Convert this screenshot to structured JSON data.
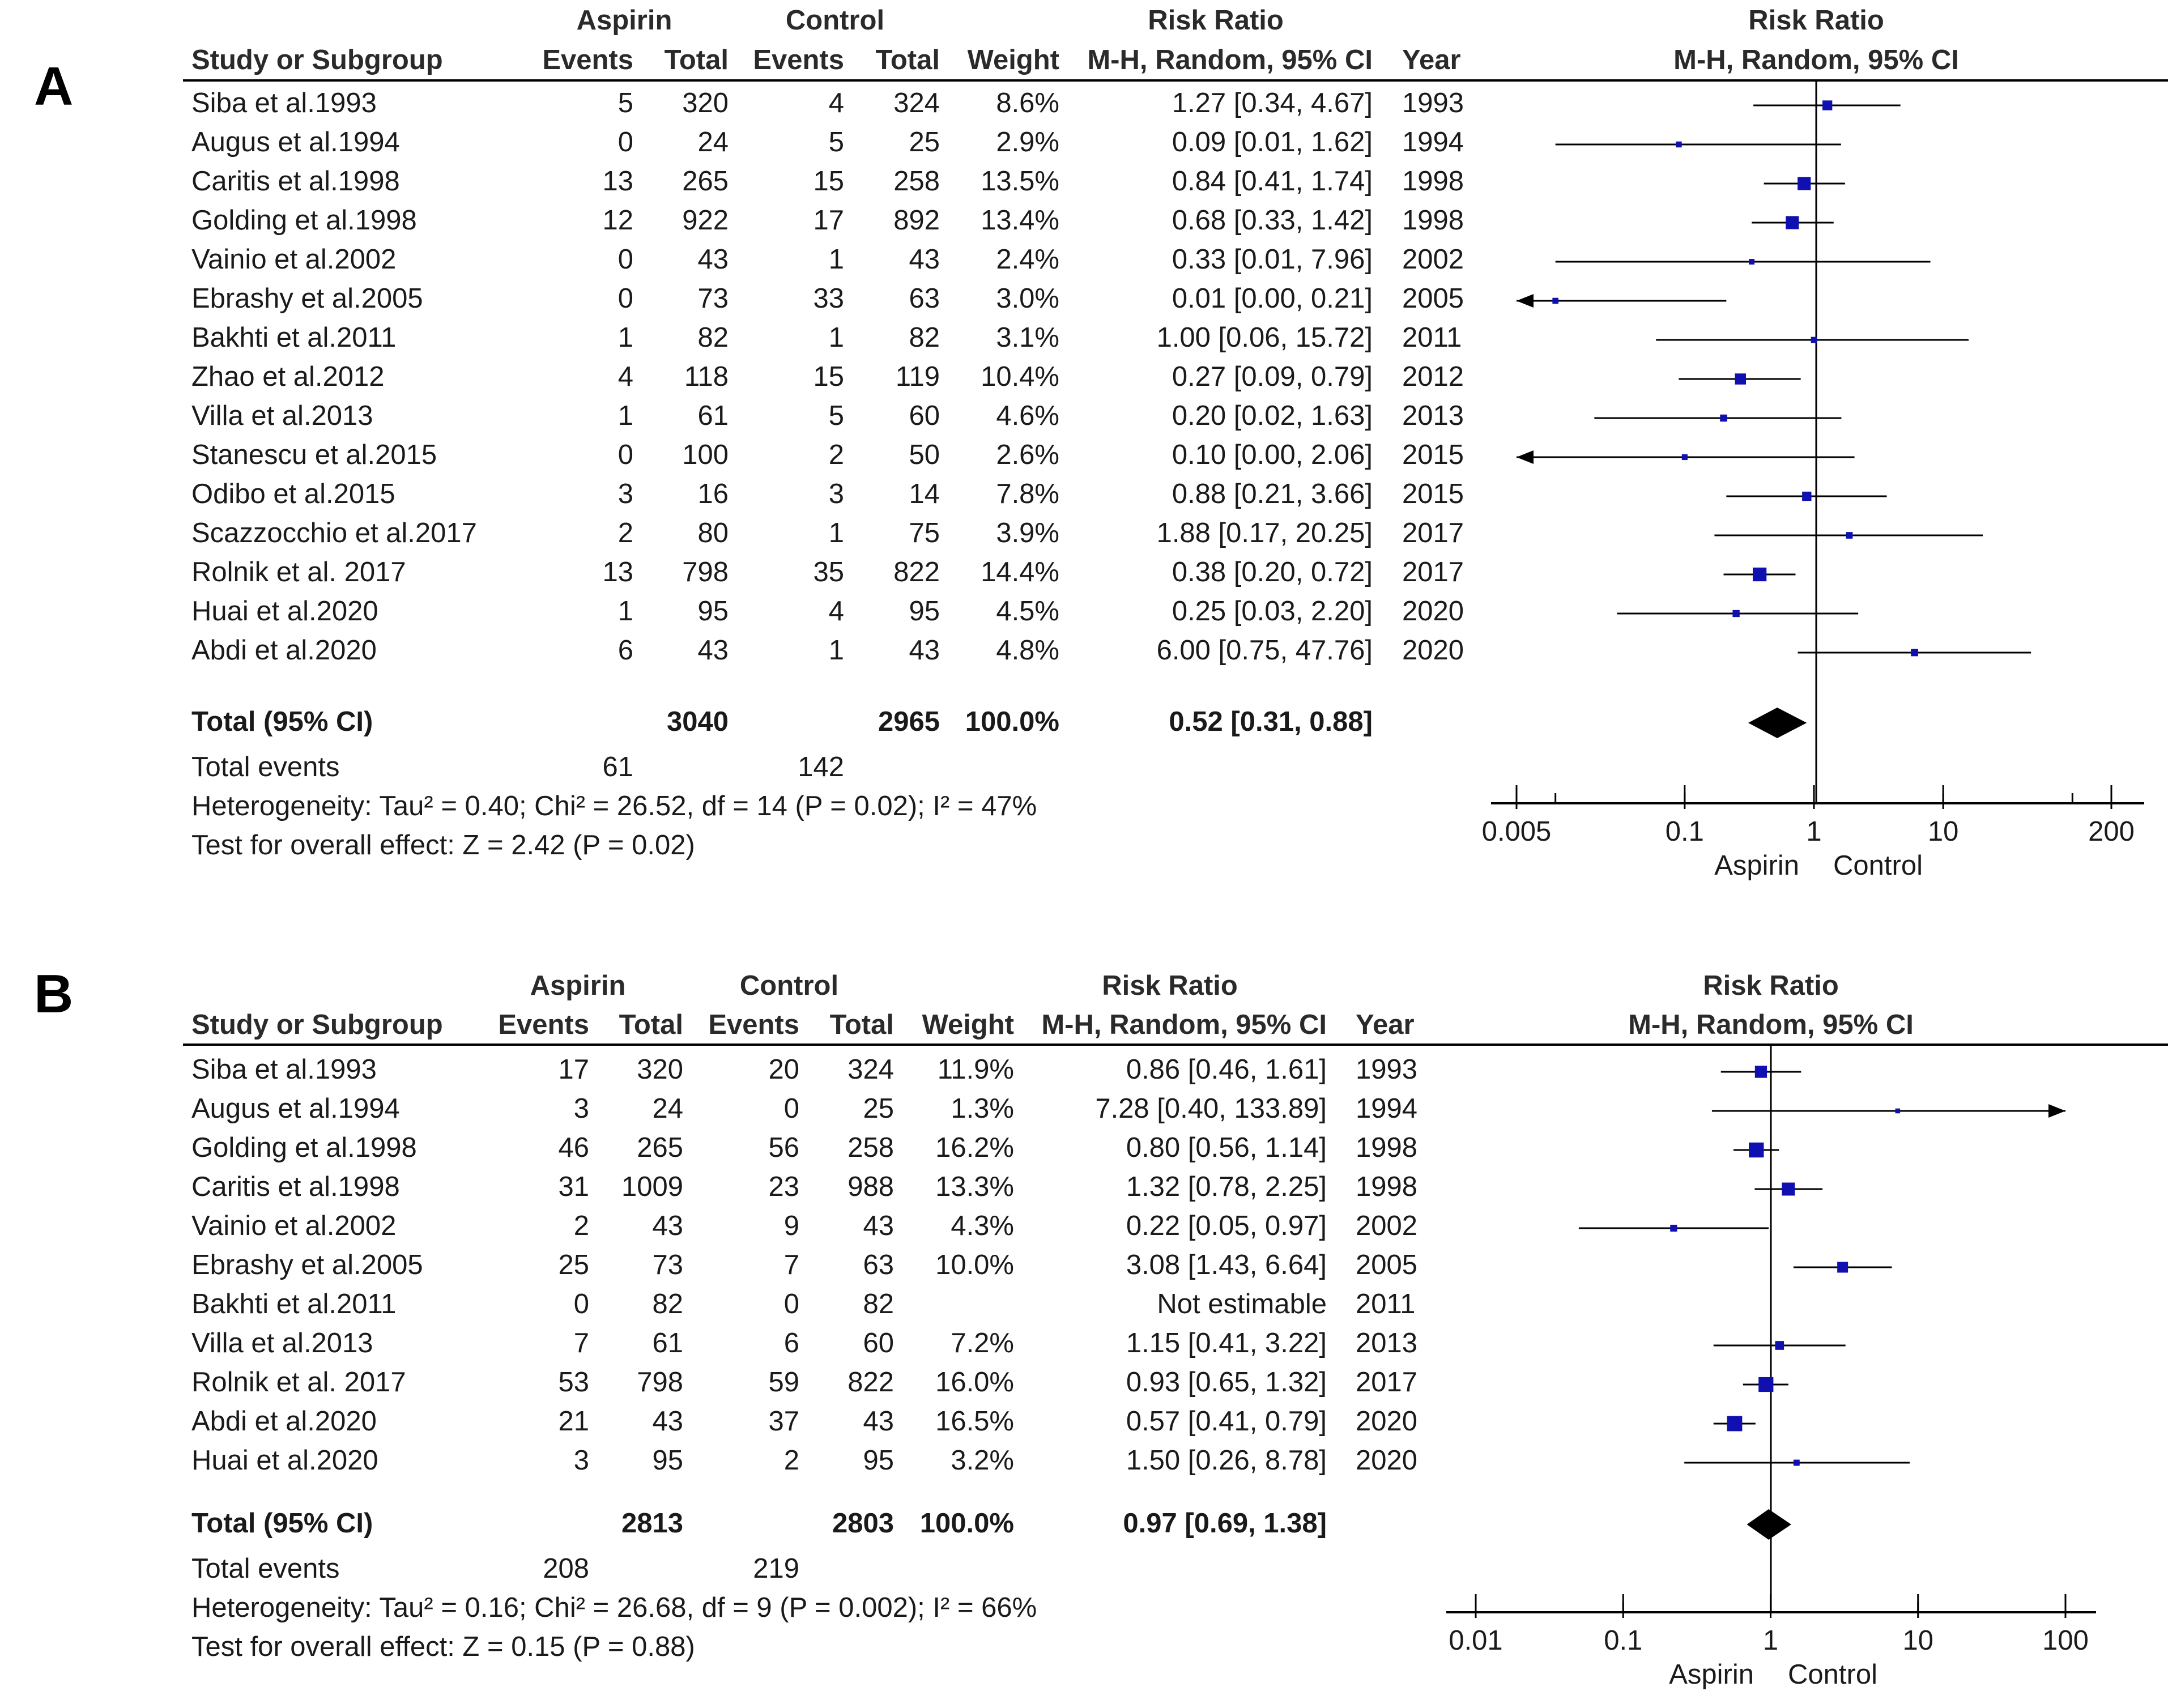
{
  "chart_data": [
    {
      "panel": "A",
      "type": "forest",
      "group_headers": {
        "experimental": "Aspirin",
        "control": "Control"
      },
      "columns": [
        "Study or Subgroup",
        "Events",
        "Total",
        "Events",
        "Total",
        "Weight",
        "M-H, Random, 95% CI",
        "Year"
      ],
      "rr_header": "Risk Ratio",
      "rr_subheader": "M-H, Random, 95% CI",
      "plot_header": "Risk Ratio",
      "plot_subheader": "M-H, Random, 95% CI",
      "studies": [
        {
          "name": "Siba et al.1993",
          "e_events": "5",
          "e_total": "320",
          "c_events": "4",
          "c_total": "324",
          "weight": "8.6%",
          "ci_text": "1.27 [0.34, 4.67]",
          "year": "1993",
          "rr": 1.27,
          "lo": 0.34,
          "hi": 4.67,
          "w": 8.6
        },
        {
          "name": "Augus et al.1994",
          "e_events": "0",
          "e_total": "24",
          "c_events": "5",
          "c_total": "25",
          "weight": "2.9%",
          "ci_text": "0.09 [0.01, 1.62]",
          "year": "1994",
          "rr": 0.09,
          "lo": 0.01,
          "hi": 1.62,
          "w": 2.9
        },
        {
          "name": "Caritis et al.1998",
          "e_events": "13",
          "e_total": "265",
          "c_events": "15",
          "c_total": "258",
          "weight": "13.5%",
          "ci_text": "0.84 [0.41, 1.74]",
          "year": "1998",
          "rr": 0.84,
          "lo": 0.41,
          "hi": 1.74,
          "w": 13.5
        },
        {
          "name": "Golding et al.1998",
          "e_events": "12",
          "e_total": "922",
          "c_events": "17",
          "c_total": "892",
          "weight": "13.4%",
          "ci_text": "0.68 [0.33, 1.42]",
          "year": "1998",
          "rr": 0.68,
          "lo": 0.33,
          "hi": 1.42,
          "w": 13.4
        },
        {
          "name": "Vainio et al.2002",
          "e_events": "0",
          "e_total": "43",
          "c_events": "1",
          "c_total": "43",
          "weight": "2.4%",
          "ci_text": "0.33 [0.01, 7.96]",
          "year": "2002",
          "rr": 0.33,
          "lo": 0.01,
          "hi": 7.96,
          "w": 2.4
        },
        {
          "name": "Ebrashy et al.2005",
          "e_events": "0",
          "e_total": "73",
          "c_events": "33",
          "c_total": "63",
          "weight": "3.0%",
          "ci_text": "0.01 [0.00, 0.21]",
          "year": "2005",
          "rr": 0.01,
          "lo": 0.0,
          "hi": 0.21,
          "w": 3.0
        },
        {
          "name": "Bakhti et al.2011",
          "e_events": "1",
          "e_total": "82",
          "c_events": "1",
          "c_total": "82",
          "weight": "3.1%",
          "ci_text": "1.00 [0.06, 15.72]",
          "year": "2011",
          "rr": 1.0,
          "lo": 0.06,
          "hi": 15.72,
          "w": 3.1
        },
        {
          "name": "Zhao et al.2012",
          "e_events": "4",
          "e_total": "118",
          "c_events": "15",
          "c_total": "119",
          "weight": "10.4%",
          "ci_text": "0.27 [0.09, 0.79]",
          "year": "2012",
          "rr": 0.27,
          "lo": 0.09,
          "hi": 0.79,
          "w": 10.4
        },
        {
          "name": "Villa et al.2013",
          "e_events": "1",
          "e_total": "61",
          "c_events": "5",
          "c_total": "60",
          "weight": "4.6%",
          "ci_text": "0.20 [0.02, 1.63]",
          "year": "2013",
          "rr": 0.2,
          "lo": 0.02,
          "hi": 1.63,
          "w": 4.6
        },
        {
          "name": "Stanescu et al.2015",
          "e_events": "0",
          "e_total": "100",
          "c_events": "2",
          "c_total": "50",
          "weight": "2.6%",
          "ci_text": "0.10 [0.00, 2.06]",
          "year": "2015",
          "rr": 0.1,
          "lo": 0.0,
          "hi": 2.06,
          "w": 2.6
        },
        {
          "name": "Odibo et al.2015",
          "e_events": "3",
          "e_total": "16",
          "c_events": "3",
          "c_total": "14",
          "weight": "7.8%",
          "ci_text": "0.88 [0.21, 3.66]",
          "year": "2015",
          "rr": 0.88,
          "lo": 0.21,
          "hi": 3.66,
          "w": 7.8
        },
        {
          "name": "Scazzocchio et al.2017",
          "e_events": "2",
          "e_total": "80",
          "c_events": "1",
          "c_total": "75",
          "weight": "3.9%",
          "ci_text": "1.88 [0.17, 20.25]",
          "year": "2017",
          "rr": 1.88,
          "lo": 0.17,
          "hi": 20.25,
          "w": 3.9
        },
        {
          "name": "Rolnik et al. 2017",
          "e_events": "13",
          "e_total": "798",
          "c_events": "35",
          "c_total": "822",
          "weight": "14.4%",
          "ci_text": "0.38 [0.20, 0.72]",
          "year": "2017",
          "rr": 0.38,
          "lo": 0.2,
          "hi": 0.72,
          "w": 14.4
        },
        {
          "name": "Huai et al.2020",
          "e_events": "1",
          "e_total": "95",
          "c_events": "4",
          "c_total": "95",
          "weight": "4.5%",
          "ci_text": "0.25 [0.03, 2.20]",
          "year": "2020",
          "rr": 0.25,
          "lo": 0.03,
          "hi": 2.2,
          "w": 4.5
        },
        {
          "name": "Abdi et al.2020",
          "e_events": "6",
          "e_total": "43",
          "c_events": "1",
          "c_total": "43",
          "weight": "4.8%",
          "ci_text": "6.00 [0.75, 47.76]",
          "year": "2020",
          "rr": 6.0,
          "lo": 0.75,
          "hi": 47.76,
          "w": 4.8
        }
      ],
      "total": {
        "label": "Total (95% CI)",
        "e_total": "3040",
        "c_total": "2965",
        "weight": "100.0%",
        "ci_text": "0.52 [0.31, 0.88]",
        "rr": 0.52,
        "lo": 0.31,
        "hi": 0.88
      },
      "total_events": {
        "label": "Total events",
        "e": "61",
        "c": "142"
      },
      "heterogeneity": "Heterogeneity: Tau² = 0.40; Chi² = 26.52, df = 14 (P = 0.02); I² = 47%",
      "overall_effect": "Test for overall effect: Z = 2.42 (P = 0.02)",
      "axis": {
        "scale": "log",
        "min": 0.005,
        "max": 200,
        "ticks": [
          0.005,
          0.1,
          1,
          10,
          200
        ],
        "tick_labels": [
          "0.005",
          "0.1",
          "1",
          "10",
          "200"
        ],
        "left_label": "Aspirin",
        "right_label": "Control"
      }
    },
    {
      "panel": "B",
      "type": "forest",
      "group_headers": {
        "experimental": "Aspirin",
        "control": "Control"
      },
      "columns": [
        "Study or Subgroup",
        "Events",
        "Total",
        "Events",
        "Total",
        "Weight",
        "M-H, Random, 95% CI",
        "Year"
      ],
      "rr_header": "Risk Ratio",
      "rr_subheader": "M-H, Random, 95% CI",
      "plot_header": "Risk Ratio",
      "plot_subheader": "M-H, Random, 95% CI",
      "studies": [
        {
          "name": "Siba et al.1993",
          "e_events": "17",
          "e_total": "320",
          "c_events": "20",
          "c_total": "324",
          "weight": "11.9%",
          "ci_text": "0.86 [0.46, 1.61]",
          "year": "1993",
          "rr": 0.86,
          "lo": 0.46,
          "hi": 1.61,
          "w": 11.9
        },
        {
          "name": "Augus et al.1994",
          "e_events": "3",
          "e_total": "24",
          "c_events": "0",
          "c_total": "25",
          "weight": "1.3%",
          "ci_text": "7.28 [0.40, 133.89]",
          "year": "1994",
          "rr": 7.28,
          "lo": 0.4,
          "hi": 133.89,
          "w": 1.3
        },
        {
          "name": "Golding et al.1998",
          "e_events": "46",
          "e_total": "265",
          "c_events": "56",
          "c_total": "258",
          "weight": "16.2%",
          "ci_text": "0.80 [0.56, 1.14]",
          "year": "1998",
          "rr": 0.8,
          "lo": 0.56,
          "hi": 1.14,
          "w": 16.2
        },
        {
          "name": "Caritis et al.1998",
          "e_events": "31",
          "e_total": "1009",
          "c_events": "23",
          "c_total": "988",
          "weight": "13.3%",
          "ci_text": "1.32 [0.78, 2.25]",
          "year": "1998",
          "rr": 1.32,
          "lo": 0.78,
          "hi": 2.25,
          "w": 13.3
        },
        {
          "name": "Vainio et al.2002",
          "e_events": "2",
          "e_total": "43",
          "c_events": "9",
          "c_total": "43",
          "weight": "4.3%",
          "ci_text": "0.22 [0.05, 0.97]",
          "year": "2002",
          "rr": 0.22,
          "lo": 0.05,
          "hi": 0.97,
          "w": 4.3
        },
        {
          "name": "Ebrashy et al.2005",
          "e_events": "25",
          "e_total": "73",
          "c_events": "7",
          "c_total": "63",
          "weight": "10.0%",
          "ci_text": "3.08 [1.43, 6.64]",
          "year": "2005",
          "rr": 3.08,
          "lo": 1.43,
          "hi": 6.64,
          "w": 10.0
        },
        {
          "name": "Bakhti et al.2011",
          "e_events": "0",
          "e_total": "82",
          "c_events": "0",
          "c_total": "82",
          "weight": "",
          "ci_text": "Not estimable",
          "year": "2011",
          "rr": null,
          "lo": null,
          "hi": null,
          "w": 0
        },
        {
          "name": "Villa et al.2013",
          "e_events": "7",
          "e_total": "61",
          "c_events": "6",
          "c_total": "60",
          "weight": "7.2%",
          "ci_text": "1.15 [0.41, 3.22]",
          "year": "2013",
          "rr": 1.15,
          "lo": 0.41,
          "hi": 3.22,
          "w": 7.2
        },
        {
          "name": "Rolnik et al. 2017",
          "e_events": "53",
          "e_total": "798",
          "c_events": "59",
          "c_total": "822",
          "weight": "16.0%",
          "ci_text": "0.93 [0.65, 1.32]",
          "year": "2017",
          "rr": 0.93,
          "lo": 0.65,
          "hi": 1.32,
          "w": 16.0
        },
        {
          "name": "Abdi et al.2020",
          "e_events": "21",
          "e_total": "43",
          "c_events": "37",
          "c_total": "43",
          "weight": "16.5%",
          "ci_text": "0.57 [0.41, 0.79]",
          "year": "2020",
          "rr": 0.57,
          "lo": 0.41,
          "hi": 0.79,
          "w": 16.5
        },
        {
          "name": "Huai et al.2020",
          "e_events": "3",
          "e_total": "95",
          "c_events": "2",
          "c_total": "95",
          "weight": "3.2%",
          "ci_text": "1.50 [0.26, 8.78]",
          "year": "2020",
          "rr": 1.5,
          "lo": 0.26,
          "hi": 8.78,
          "w": 3.2
        }
      ],
      "total": {
        "label": "Total (95% CI)",
        "e_total": "2813",
        "c_total": "2803",
        "weight": "100.0%",
        "ci_text": "0.97 [0.69, 1.38]",
        "rr": 0.97,
        "lo": 0.69,
        "hi": 1.38
      },
      "total_events": {
        "label": "Total events",
        "e": "208",
        "c": "219"
      },
      "heterogeneity": "Heterogeneity: Tau² = 0.16; Chi² = 26.68, df = 9 (P = 0.002); I² = 66%",
      "overall_effect": "Test for overall effect: Z = 0.15 (P = 0.88)",
      "axis": {
        "scale": "log",
        "min": 0.01,
        "max": 100,
        "ticks": [
          0.01,
          0.1,
          1,
          10,
          100
        ],
        "tick_labels": [
          "0.01",
          "0.1",
          "1",
          "10",
          "100"
        ],
        "left_label": "Aspirin",
        "right_label": "Control"
      }
    }
  ],
  "panels": {
    "a_label": "A",
    "b_label": "B"
  },
  "colors": {
    "marker": "#1010b0",
    "diamond": "#000000",
    "text": "#1a1a1a",
    "line": "#000000"
  }
}
